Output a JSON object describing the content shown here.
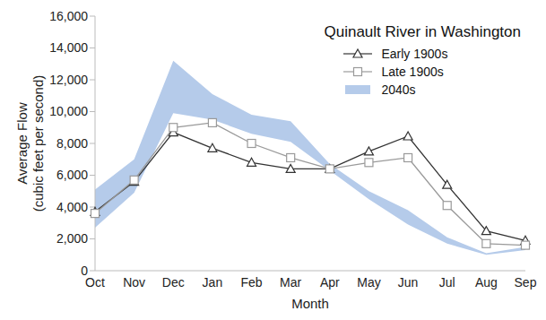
{
  "chart_data": {
    "type": "line",
    "title": "Quinault River in Washington",
    "x_label": "Month",
    "y_label": [
      "Average Flow",
      "(cubic feet per second)"
    ],
    "categories": [
      "Oct",
      "Nov",
      "Dec",
      "Jan",
      "Feb",
      "Mar",
      "Apr",
      "May",
      "Jun",
      "Jul",
      "Aug",
      "Sep"
    ],
    "series": [
      {
        "name": "Early 1900s",
        "type": "line",
        "color": "#333333",
        "marker": "triangle",
        "line_style": "solid",
        "values": [
          3700,
          5600,
          8700,
          7700,
          6800,
          6400,
          6400,
          7500,
          8450,
          5400,
          2500,
          1900
        ]
      },
      {
        "name": "Late 1900s",
        "type": "line",
        "color": "#9a9a9a",
        "marker": "square",
        "line_style": "solid",
        "values": [
          3600,
          5700,
          9000,
          9300,
          8000,
          7100,
          6400,
          6800,
          7100,
          4100,
          1700,
          1600
        ]
      },
      {
        "name": "2040s",
        "type": "area",
        "color": "#b5cbea",
        "values": [
          [
            2700,
            5100
          ],
          [
            4900,
            7000
          ],
          [
            9900,
            13200
          ],
          [
            9500,
            11100
          ],
          [
            8600,
            9800
          ],
          [
            8100,
            9400
          ],
          [
            6300,
            6700
          ],
          [
            4500,
            5000
          ],
          [
            2900,
            3800
          ],
          [
            1700,
            2100
          ],
          [
            1000,
            1100
          ],
          [
            1300,
            1500
          ]
        ]
      }
    ],
    "ylim": [
      0,
      16000
    ],
    "yticks": [
      0,
      {
        "value": 2000,
        "label": "2,000"
      },
      {
        "value": 4000,
        "label": "4,000"
      },
      {
        "value": 6000,
        "label": "6,000"
      },
      {
        "value": 8000,
        "label": "8,000"
      },
      {
        "value": 10000,
        "label": "10,000"
      },
      {
        "value": 12000,
        "label": "12,000"
      },
      {
        "value": 14000,
        "label": "14,000"
      },
      {
        "value": 16000,
        "label": "16,000"
      }
    ],
    "grid": false,
    "legend": "upper right"
  }
}
